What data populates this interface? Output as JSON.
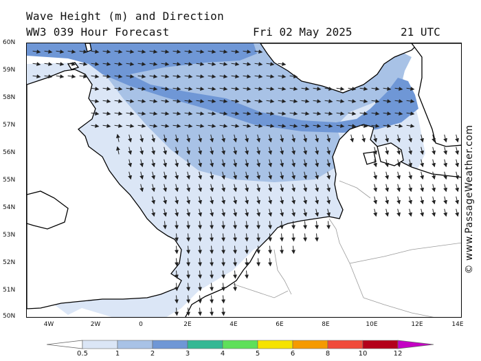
{
  "header": {
    "title_line1": "Wave Height (m) and Direction",
    "title_line2": "WW3 039 Hour Forecast",
    "date": "Fri 02 May 2025",
    "time": "21 UTC"
  },
  "credit": "© www.PassageWeather.com",
  "axes": {
    "latitude_labels": [
      "60N",
      "59N",
      "58N",
      "57N",
      "56N",
      "55N",
      "54N",
      "53N",
      "52N",
      "51N",
      "50N"
    ],
    "longitude_labels": [
      "4W",
      "2W",
      "0",
      "2E",
      "4E",
      "6E",
      "8E",
      "10E",
      "12E",
      "14E"
    ]
  },
  "legend": {
    "labels": [
      "0.5",
      "1",
      "2",
      "3",
      "4",
      "5",
      "6",
      "8",
      "10",
      "12"
    ],
    "colors": [
      "#dbe6f6",
      "#a8c2e6",
      "#6f97d6",
      "#35b894",
      "#5fe05a",
      "#f5e300",
      "#f59a00",
      "#f04a3a",
      "#b4001a",
      "#c400c4"
    ]
  },
  "map": {
    "region": "North Sea",
    "wave_bands": [
      {
        "range": "0.5-1",
        "color": "#dbe6f6"
      },
      {
        "range": "1-2",
        "color": "#a8c2e6"
      },
      {
        "range": "2-3",
        "color": "#6f97d6"
      }
    ],
    "land_color": "#ffffff",
    "coast_color": "#000000",
    "border_color": "#999999"
  }
}
